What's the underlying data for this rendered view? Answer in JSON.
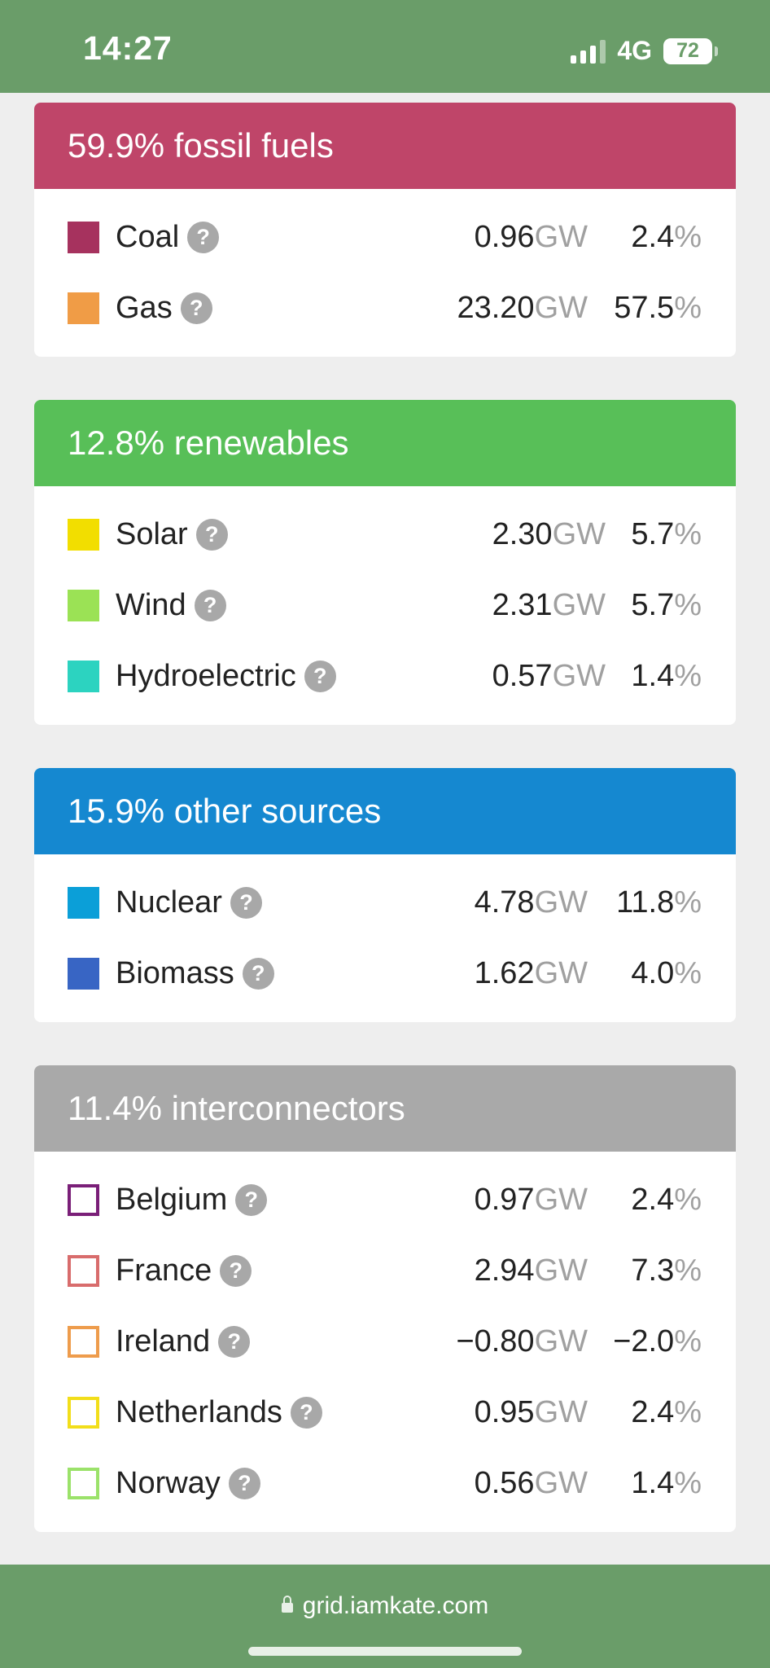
{
  "status_bar": {
    "time": "14:27",
    "network": "4G",
    "battery": "72"
  },
  "units": {
    "power": "GW",
    "percent": "%"
  },
  "groups": [
    {
      "title": "59.9% fossil fuels",
      "color": "#bf4569",
      "items": [
        {
          "name": "Coal",
          "gw": "0.96",
          "pct": "2.4",
          "swatch": "#a6325e",
          "outline": false
        },
        {
          "name": "Gas",
          "gw": "23.20",
          "pct": "57.5",
          "swatch": "#f09c46",
          "outline": false
        }
      ]
    },
    {
      "title": "12.8% renewables",
      "color": "#58bf58",
      "items": [
        {
          "name": "Solar",
          "gw": "2.30",
          "pct": "5.7",
          "swatch": "#f2de00",
          "outline": false
        },
        {
          "name": "Wind",
          "gw": "2.31",
          "pct": "5.7",
          "swatch": "#9be255",
          "outline": false
        },
        {
          "name": "Hydroelectric",
          "gw": "0.57",
          "pct": "1.4",
          "swatch": "#2cd3c0",
          "outline": false
        }
      ]
    },
    {
      "title": "15.9% other sources",
      "color": "#1588d0",
      "items": [
        {
          "name": "Nuclear",
          "gw": "4.78",
          "pct": "11.8",
          "swatch": "#0b9fd8",
          "outline": false
        },
        {
          "name": "Biomass",
          "gw": "1.62",
          "pct": "4.0",
          "swatch": "#3865c4",
          "outline": false
        }
      ]
    },
    {
      "title": "11.4% interconnectors",
      "color": "#a9a9a9",
      "items": [
        {
          "name": "Belgium",
          "gw": "0.97",
          "pct": "2.4",
          "swatch": "#7a1f78",
          "outline": true
        },
        {
          "name": "France",
          "gw": "2.94",
          "pct": "7.3",
          "swatch": "#d86c6c",
          "outline": true
        },
        {
          "name": "Ireland",
          "gw": "−0.80",
          "pct": "−2.0",
          "swatch": "#ee9c4c",
          "outline": true
        },
        {
          "name": "Netherlands",
          "gw": "0.95",
          "pct": "2.4",
          "swatch": "#f2de1a",
          "outline": true
        },
        {
          "name": "Norway",
          "gw": "0.56",
          "pct": "1.4",
          "swatch": "#9be26a",
          "outline": true
        }
      ]
    }
  ],
  "browser": {
    "url": "grid.iamkate.com"
  }
}
